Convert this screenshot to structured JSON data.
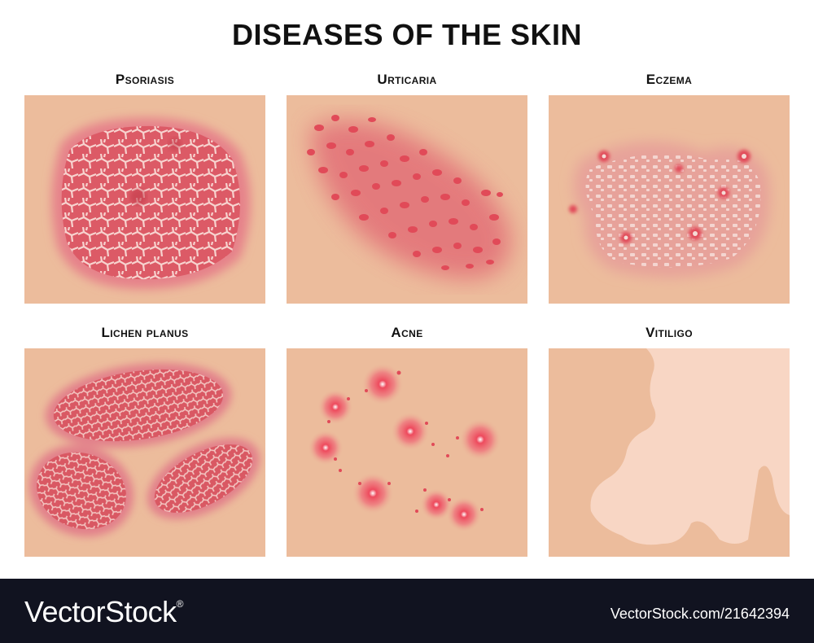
{
  "title": "DISEASES OF THE SKIN",
  "panels": [
    {
      "label": "Psoriasis"
    },
    {
      "label": "Urticaria"
    },
    {
      "label": "Eczema"
    },
    {
      "label": "Lichen planus"
    },
    {
      "label": "Acne"
    },
    {
      "label": "Vitiligo"
    }
  ],
  "footer": {
    "brand": "VectorStock",
    "registered": "®",
    "image_id": "VectorStock.com/21642394"
  },
  "colors": {
    "skin": "#ecbc9c",
    "lesion": "#e0535d",
    "scale": "#f3c6c2",
    "depigmented": "#f8d6c4",
    "footer_bg": "#111320"
  }
}
